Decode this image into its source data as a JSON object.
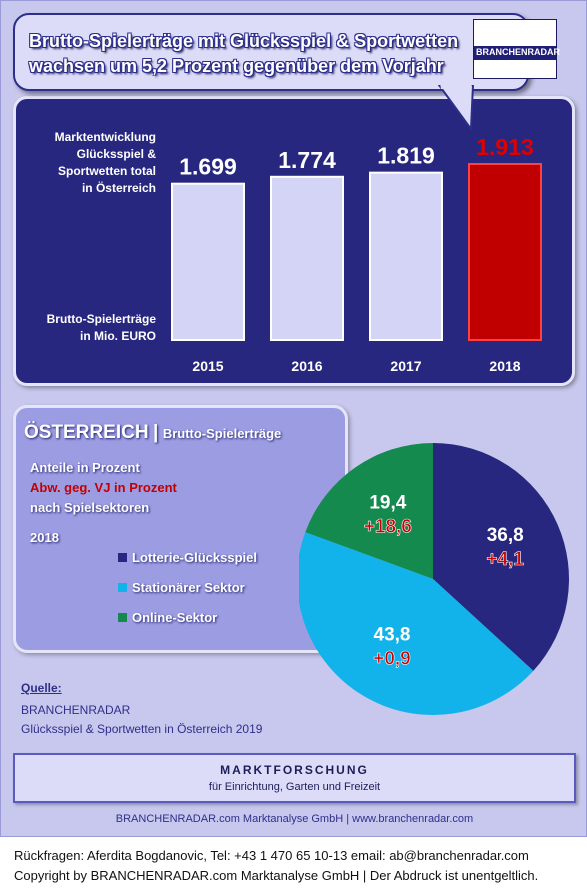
{
  "headline": {
    "line1": "Brutto-Spielerträge mit Glücksspiel & Sportwetten",
    "line2": "wachsen um 5,2 Prozent gegenüber dem Vorjahr"
  },
  "logo": {
    "text": "BRANCHENRADAR"
  },
  "market_chart": {
    "label_lines": [
      "Marktentwicklung",
      "Glücksspiel &",
      "Sportwetten total",
      "in Österreich"
    ],
    "unit_lines": [
      "Brutto-Spielerträge",
      "in Mio. EURO"
    ]
  },
  "share_panel": {
    "country": "ÖSTERREICH",
    "separator": "|",
    "subtitle": "Brutto-Spielerträge",
    "desc_line1": "Anteile in Prozent",
    "desc_line2": "Abw. geg. VJ in Prozent",
    "desc_line3": "nach Spielsektoren",
    "year": "2018"
  },
  "chart_data": [
    {
      "type": "bar",
      "categories": [
        "2015",
        "2016",
        "2017",
        "2018"
      ],
      "values": [
        1699,
        1774,
        1819,
        1913
      ],
      "value_labels": [
        "1.699",
        "1.774",
        "1.819",
        "1.913"
      ],
      "highlight_index": 3,
      "colors": {
        "bar": "#d4d4f6",
        "highlight": "#c00000",
        "panel": "#27277f",
        "label": "#ffffff",
        "highlight_label": "#e00000"
      }
    },
    {
      "type": "pie",
      "title": "2018",
      "slices": [
        {
          "name": "Lotterie-Glücksspiel",
          "share": 36.8,
          "share_label": "36,8",
          "change_label": "+4,1",
          "color": "#27277f"
        },
        {
          "name": "Stationärer Sektor",
          "share": 43.8,
          "share_label": "43,8",
          "change_label": "+0,9",
          "color": "#12b2ea"
        },
        {
          "name": "Online-Sektor",
          "share": 19.4,
          "share_label": "19,4",
          "change_label": "+18,6",
          "color": "#158a4f"
        }
      ],
      "legend_position": "left"
    }
  ],
  "source": {
    "label": "Quelle:",
    "line1": "BRANCHENRADAR",
    "line2": "Glücksspiel & Sportwetten in Österreich 2019"
  },
  "footer": {
    "title": "MARKTFORSCHUNG",
    "subtitle": "für Einrichtung, Garten und Freizeit",
    "company": "BRANCHENRADAR.com Marktanalyse GmbH | www.branchenradar.com"
  },
  "contact": {
    "line1": "Rückfragen: Aferdita Bogdanovic, Tel: +43 1 470 65 10-13 email: ab@branchenradar.com",
    "line2": "Copyright by BRANCHENRADAR.com Marktanalyse GmbH | Der Abdruck ist unentgeltlich."
  }
}
